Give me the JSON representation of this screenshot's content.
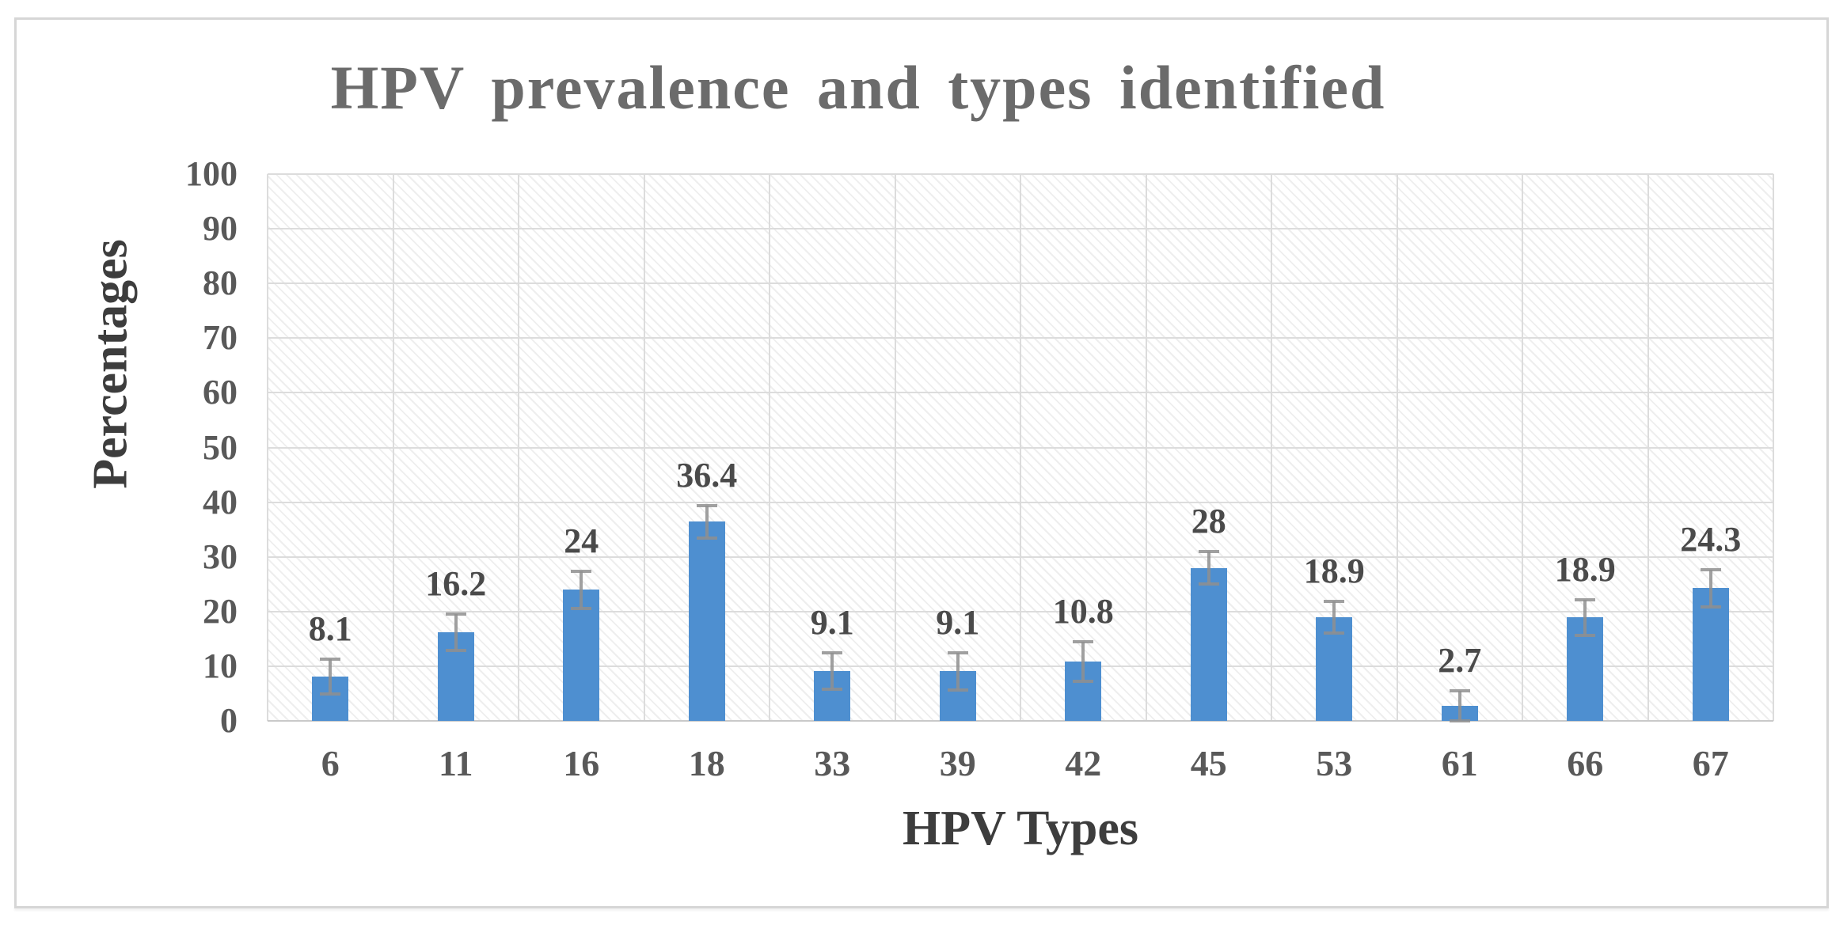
{
  "figure": {
    "background_color": "#ffffff",
    "frame_border_color": "#d6d6d6",
    "plot_background": "light gray downward-diagonal hatch pattern",
    "gridline_color": "#dcdcdc"
  },
  "chart_data": {
    "type": "bar",
    "title": "HPV prevalence and types identified",
    "xlabel": "HPV Types",
    "ylabel": "Percentages",
    "categories": [
      "6",
      "11",
      "16",
      "18",
      "33",
      "39",
      "42",
      "45",
      "53",
      "61",
      "66",
      "67"
    ],
    "values": [
      8.1,
      16.2,
      24,
      36.4,
      9.1,
      9.1,
      10.8,
      28,
      18.9,
      2.7,
      18.9,
      24.3
    ],
    "data_labels": [
      "8.1",
      "16.2",
      "24",
      "36.4",
      "9.1",
      "9.1",
      "10.8",
      "28",
      "18.9",
      "2.7",
      "18.9",
      "24.3"
    ],
    "error_bars_approx": [
      3.2,
      3.3,
      3.4,
      3.0,
      3.3,
      3.4,
      3.6,
      3.0,
      2.9,
      2.8,
      3.2,
      3.4
    ],
    "ylim": [
      0,
      100
    ],
    "y_ticks": [
      0,
      10,
      20,
      30,
      40,
      50,
      60,
      70,
      80,
      90,
      100
    ],
    "grid": "horizontal and vertical major gridlines shown",
    "legend": null,
    "bar_color": "#4e8fd0",
    "error_bar_color": "#8f8f8f",
    "title_color": "#6b6b6b",
    "axis_title_color": "#3d3d3d",
    "tick_label_color": "#595959",
    "data_label_color": "#4a4a4a"
  }
}
